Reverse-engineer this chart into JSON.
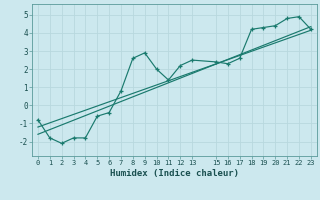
{
  "xlabel": "Humidex (Indice chaleur)",
  "bg_color": "#cce8ee",
  "grid_color": "#b8d8de",
  "line_color": "#1a7a6e",
  "xlim": [
    -0.5,
    23.5
  ],
  "ylim": [
    -2.8,
    5.6
  ],
  "xticks": [
    0,
    1,
    2,
    3,
    4,
    5,
    6,
    7,
    8,
    9,
    10,
    11,
    12,
    13,
    15,
    16,
    17,
    18,
    19,
    20,
    21,
    22,
    23
  ],
  "yticks": [
    -2,
    -1,
    0,
    1,
    2,
    3,
    4,
    5
  ],
  "data_x": [
    0,
    1,
    2,
    3,
    4,
    5,
    6,
    7,
    8,
    9,
    10,
    11,
    12,
    13,
    15,
    16,
    17,
    18,
    19,
    20,
    21,
    22,
    23
  ],
  "data_y": [
    -0.8,
    -1.8,
    -2.1,
    -1.8,
    -1.8,
    -0.6,
    -0.4,
    0.8,
    2.6,
    2.9,
    2.0,
    1.4,
    2.2,
    2.5,
    2.4,
    2.3,
    2.6,
    4.2,
    4.3,
    4.4,
    4.8,
    4.9,
    4.2
  ],
  "trend1_x": [
    0,
    23
  ],
  "trend1_y": [
    -1.6,
    4.35
  ],
  "trend2_x": [
    0,
    23
  ],
  "trend2_y": [
    -1.2,
    4.15
  ]
}
